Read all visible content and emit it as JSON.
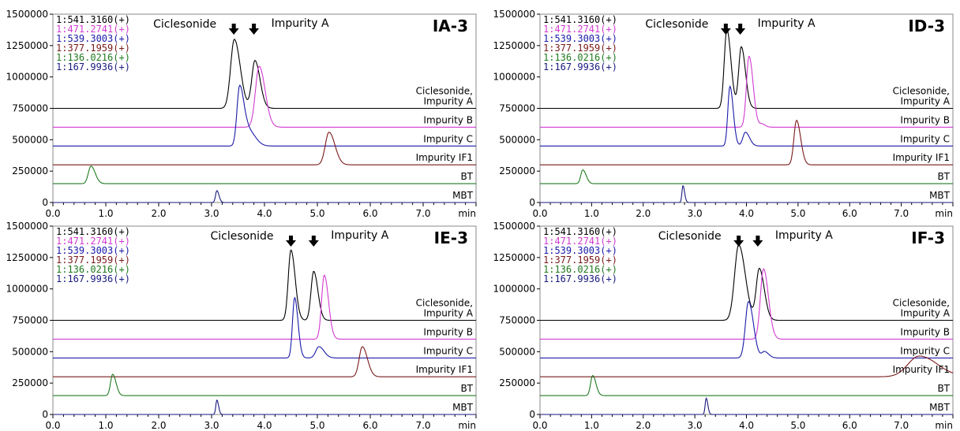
{
  "colors": {
    "black": "#000000",
    "magenta": "#d13bd1",
    "blue": "#1a1aa8",
    "brown": "#7a1a1a",
    "green": "#1f7a1f",
    "navy": "#1a1a80",
    "grid": "#888888"
  },
  "chart_data": [
    {
      "type": "line",
      "title": "IA-3",
      "xlabel": "min",
      "ylabel": "",
      "xlim": [
        0,
        8
      ],
      "ylim": [
        0,
        1500000
      ],
      "xticks": [
        "0.0",
        "1.0",
        "2.0",
        "3.0",
        "4.0",
        "5.0",
        "6.0",
        "7.0"
      ],
      "yticks": [
        "0",
        "250000",
        "500000",
        "750000",
        "1000000",
        "1250000",
        "1500000"
      ],
      "legend": [
        {
          "text": "1:541.3160(+)",
          "color": "#000000"
        },
        {
          "text": "1:471.2741(+)",
          "color": "#d13bd1"
        },
        {
          "text": "1:539.3003(+)",
          "color": "#1a1aa8"
        },
        {
          "text": "1:377.1959(+)",
          "color": "#7a1a1a"
        },
        {
          "text": "1:136.0216(+)",
          "color": "#1f7a1f"
        },
        {
          "text": "1:167.9936(+)",
          "color": "#1a1a80"
        }
      ],
      "annotations": {
        "left": "Ciclesonide",
        "right": "Impurity A",
        "arrows_x": [
          3.42,
          3.8
        ]
      },
      "series": [
        {
          "name": "Ciclesonide,\nImpurity A",
          "color": "#000000",
          "baseline": 750000,
          "peaks": [
            [
              3.43,
              550000,
              0.07
            ],
            [
              3.82,
              380000,
              0.06
            ]
          ]
        },
        {
          "name": "Impurity B",
          "color": "#d13bd1",
          "baseline": 600000,
          "peaks": [
            [
              3.9,
              485000,
              0.07
            ]
          ]
        },
        {
          "name": "Impurity C",
          "color": "#1a1aa8",
          "baseline": 450000,
          "peaks": [
            [
              3.53,
              470000,
              0.05
            ],
            [
              3.7,
              120000,
              0.08
            ]
          ]
        },
        {
          "name": "Impurity IF1",
          "color": "#7a1a1a",
          "baseline": 300000,
          "peaks": [
            [
              5.22,
              260000,
              0.07
            ]
          ]
        },
        {
          "name": "BT",
          "color": "#1f7a1f",
          "baseline": 150000,
          "peaks": [
            [
              0.72,
              140000,
              0.05
            ]
          ]
        },
        {
          "name": "MBT",
          "color": "#1a1a80",
          "baseline": 0,
          "peaks": [
            [
              3.1,
              95000,
              0.025
            ]
          ]
        }
      ]
    },
    {
      "type": "line",
      "title": "ID-3",
      "xlabel": "min",
      "ylabel": "",
      "xlim": [
        0,
        8
      ],
      "ylim": [
        0,
        1500000
      ],
      "xticks": [
        "0.0",
        "1.0",
        "2.0",
        "3.0",
        "4.0",
        "5.0",
        "6.0",
        "7.0"
      ],
      "yticks": [
        "0",
        "250000",
        "500000",
        "750000",
        "1000000",
        "1250000",
        "1500000"
      ],
      "legend": [
        {
          "text": "1:541.3160(+)",
          "color": "#000000"
        },
        {
          "text": "1:471.2741(+)",
          "color": "#d13bd1"
        },
        {
          "text": "1:539.3003(+)",
          "color": "#1a1aa8"
        },
        {
          "text": "1:377.1959(+)",
          "color": "#7a1a1a"
        },
        {
          "text": "1:136.0216(+)",
          "color": "#1f7a1f"
        },
        {
          "text": "1:167.9936(+)",
          "color": "#1a1a80"
        }
      ],
      "annotations": {
        "left": "Ciclesonide",
        "right": "Impurity A",
        "arrows_x": [
          3.6,
          3.88
        ]
      },
      "series": [
        {
          "name": "Ciclesonide,\nImpurity A",
          "color": "#000000",
          "baseline": 750000,
          "peaks": [
            [
              3.62,
              630000,
              0.05
            ],
            [
              3.9,
              490000,
              0.05
            ]
          ]
        },
        {
          "name": "Impurity B",
          "color": "#d13bd1",
          "baseline": 600000,
          "peaks": [
            [
              4.05,
              565000,
              0.05
            ],
            [
              4.3,
              25000,
              0.04
            ]
          ]
        },
        {
          "name": "Impurity C",
          "color": "#1a1aa8",
          "baseline": 450000,
          "peaks": [
            [
              3.68,
              475000,
              0.04
            ],
            [
              3.98,
              110000,
              0.05
            ]
          ]
        },
        {
          "name": "Impurity IF1",
          "color": "#7a1a1a",
          "baseline": 300000,
          "peaks": [
            [
              4.97,
              355000,
              0.05
            ]
          ]
        },
        {
          "name": "BT",
          "color": "#1f7a1f",
          "baseline": 150000,
          "peaks": [
            [
              0.83,
              110000,
              0.04
            ]
          ]
        },
        {
          "name": "MBT",
          "color": "#1a1a80",
          "baseline": 0,
          "peaks": [
            [
              2.77,
              135000,
              0.02
            ]
          ]
        }
      ]
    },
    {
      "type": "line",
      "title": "IE-3",
      "xlabel": "min",
      "ylabel": "",
      "xlim": [
        0,
        8
      ],
      "ylim": [
        0,
        1500000
      ],
      "xticks": [
        "0.0",
        "1.0",
        "2.0",
        "3.0",
        "4.0",
        "5.0",
        "6.0",
        "7.0"
      ],
      "yticks": [
        "0",
        "250000",
        "500000",
        "750000",
        "1000000",
        "1250000",
        "1500000"
      ],
      "legend": [
        {
          "text": "1:541.3160(+)",
          "color": "#000000"
        },
        {
          "text": "1:471.2741(+)",
          "color": "#d13bd1"
        },
        {
          "text": "1:539.3003(+)",
          "color": "#1a1aa8"
        },
        {
          "text": "1:377.1959(+)",
          "color": "#7a1a1a"
        },
        {
          "text": "1:136.0216(+)",
          "color": "#1f7a1f"
        },
        {
          "text": "1:167.9936(+)",
          "color": "#1a1a80"
        }
      ],
      "annotations": {
        "left": "Ciclesonide",
        "right": "Impurity A",
        "arrows_x": [
          4.5,
          4.93
        ]
      },
      "series": [
        {
          "name": "Ciclesonide,\nImpurity A",
          "color": "#000000",
          "baseline": 750000,
          "peaks": [
            [
              4.5,
              560000,
              0.05
            ],
            [
              4.93,
              390000,
              0.05
            ]
          ]
        },
        {
          "name": "Impurity B",
          "color": "#d13bd1",
          "baseline": 600000,
          "peaks": [
            [
              5.13,
              510000,
              0.05
            ]
          ]
        },
        {
          "name": "Impurity C",
          "color": "#1a1aa8",
          "baseline": 450000,
          "peaks": [
            [
              4.57,
              480000,
              0.04
            ],
            [
              5.03,
              90000,
              0.06
            ]
          ]
        },
        {
          "name": "Impurity IF1",
          "color": "#7a1a1a",
          "baseline": 300000,
          "peaks": [
            [
              5.85,
              240000,
              0.06
            ]
          ]
        },
        {
          "name": "BT",
          "color": "#1f7a1f",
          "baseline": 150000,
          "peaks": [
            [
              1.13,
              170000,
              0.04
            ]
          ]
        },
        {
          "name": "MBT",
          "color": "#1a1a80",
          "baseline": 0,
          "peaks": [
            [
              3.1,
              115000,
              0.02
            ]
          ]
        }
      ]
    },
    {
      "type": "line",
      "title": "IF-3",
      "xlabel": "min",
      "ylabel": "",
      "xlim": [
        0,
        8
      ],
      "ylim": [
        0,
        1500000
      ],
      "xticks": [
        "0.0",
        "1.0",
        "2.0",
        "3.0",
        "4.0",
        "5.0",
        "6.0",
        "7.0"
      ],
      "yticks": [
        "0",
        "250000",
        "500000",
        "750000",
        "1000000",
        "1250000",
        "1500000"
      ],
      "legend": [
        {
          "text": "1:541.3160(+)",
          "color": "#000000"
        },
        {
          "text": "1:471.2741(+)",
          "color": "#d13bd1"
        },
        {
          "text": "1:539.3003(+)",
          "color": "#1a1aa8"
        },
        {
          "text": "1:377.1959(+)",
          "color": "#7a1a1a"
        },
        {
          "text": "1:136.0216(+)",
          "color": "#1f7a1f"
        },
        {
          "text": "1:167.9936(+)",
          "color": "#1a1a80"
        }
      ],
      "annotations": {
        "left": "Ciclesonide",
        "right": "Impurity A",
        "arrows_x": [
          3.85,
          4.22
        ]
      },
      "series": [
        {
          "name": "Ciclesonide,\nImpurity A",
          "color": "#000000",
          "baseline": 750000,
          "peaks": [
            [
              3.85,
              600000,
              0.08
            ],
            [
              4.25,
              410000,
              0.06
            ]
          ]
        },
        {
          "name": "Impurity B",
          "color": "#d13bd1",
          "baseline": 600000,
          "peaks": [
            [
              4.33,
              560000,
              0.06
            ]
          ]
        },
        {
          "name": "Impurity C",
          "color": "#1a1aa8",
          "baseline": 450000,
          "peaks": [
            [
              4.04,
              450000,
              0.06
            ],
            [
              4.35,
              50000,
              0.05
            ]
          ]
        },
        {
          "name": "Impurity IF1",
          "color": "#7a1a1a",
          "baseline": 300000,
          "peaks": [
            [
              7.35,
              165000,
              0.22
            ]
          ]
        },
        {
          "name": "BT",
          "color": "#1f7a1f",
          "baseline": 150000,
          "peaks": [
            [
              1.02,
              160000,
              0.04
            ]
          ]
        },
        {
          "name": "MBT",
          "color": "#1a1a80",
          "baseline": 0,
          "peaks": [
            [
              3.22,
              130000,
              0.02
            ]
          ]
        }
      ]
    }
  ]
}
